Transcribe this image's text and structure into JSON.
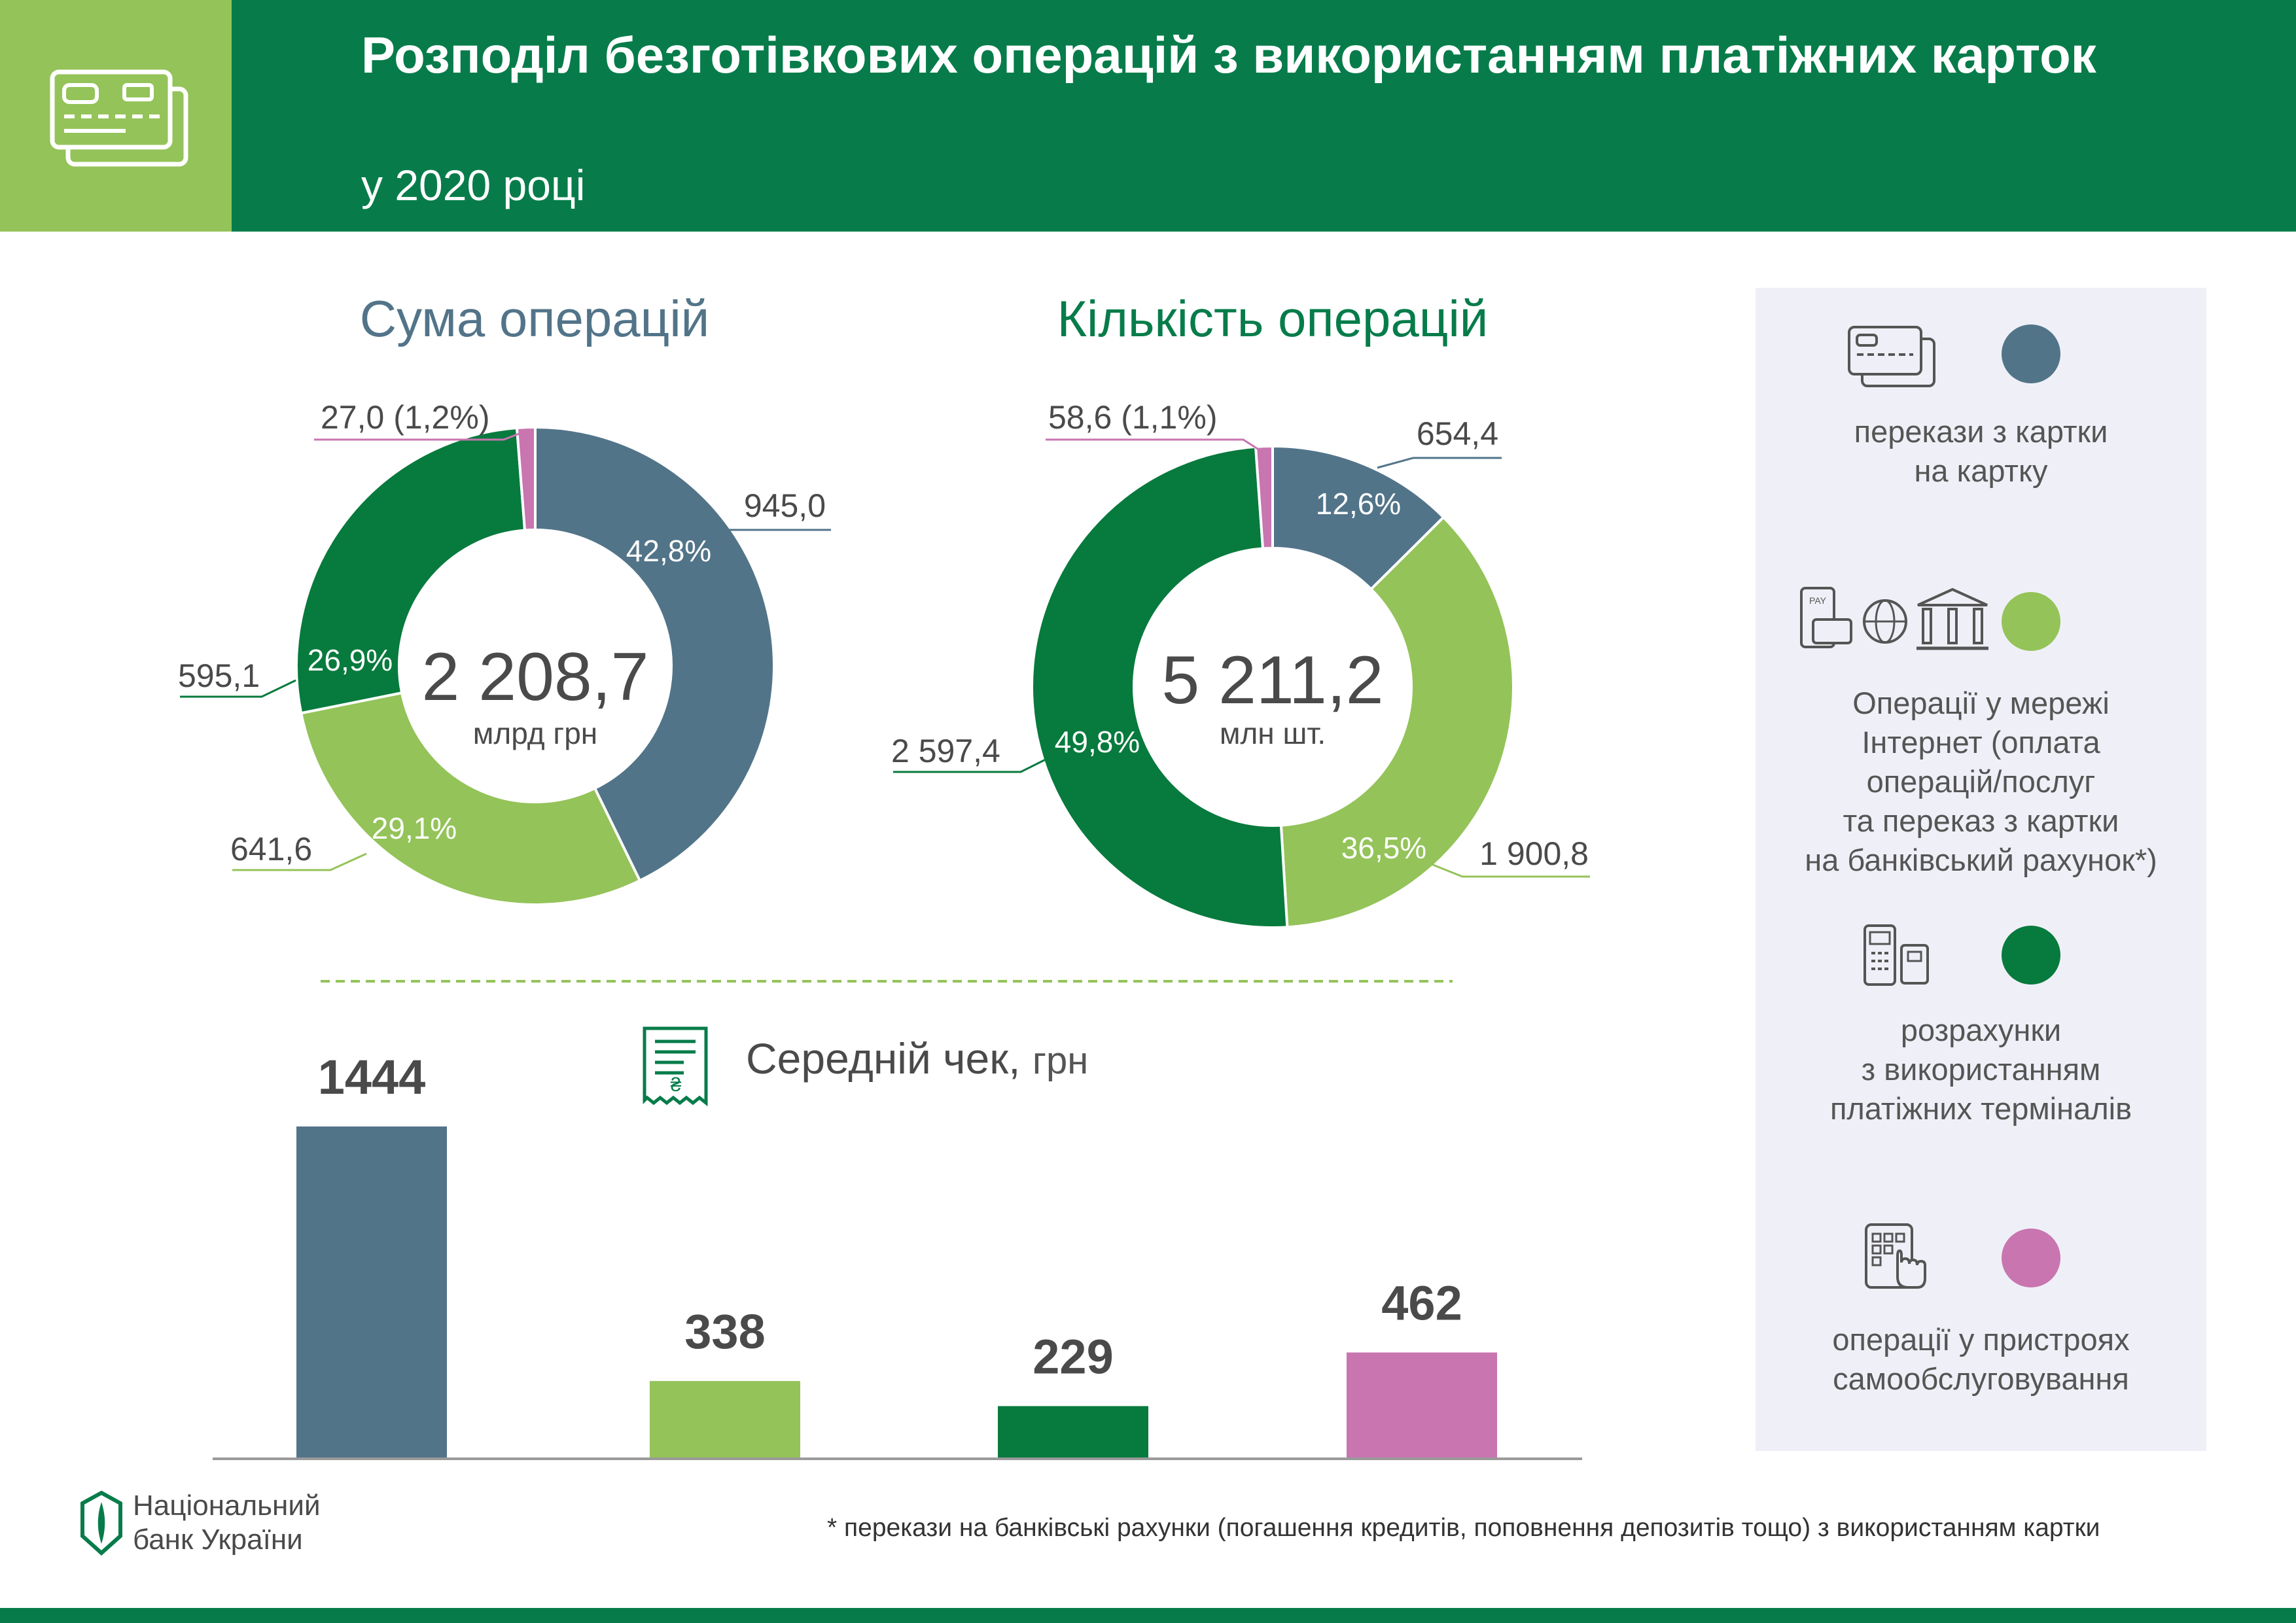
{
  "header": {
    "title": "Розподіл безготівкових операцій з використанням платіжних карток",
    "subtitle": "у 2020 році"
  },
  "donut_sum": {
    "title": "Сума операцій",
    "total": "2 208,7",
    "unit": "млрд грн"
  },
  "donut_count": {
    "title": "Кількість операцій",
    "total": "5 211,2",
    "unit": "млн шт."
  },
  "avg_check": {
    "title": "Середній чек,",
    "unit": "грн"
  },
  "legend": [
    {
      "label": "перекази з картки\nна картку",
      "color": "#527489",
      "icon": "credit-card-icon"
    },
    {
      "label": "Операції у мережі\nІнтернет (оплата\nоперацій/послуг\nта переказ з картки\nна банківський рахунок*)",
      "color": "#94c359",
      "icon": "internet-payment-icon"
    },
    {
      "label": "розрахунки\nз використанням\nплатіжних терміналів",
      "color": "#077a3d",
      "icon": "pos-terminal-icon"
    },
    {
      "label": "операції у пристроях\nсамообслуговування",
      "color": "#c875b0",
      "icon": "self-service-kiosk-icon"
    }
  ],
  "footer": {
    "logo_line1": "Національний",
    "logo_line2": "банк України",
    "note": "* перекази на банківські рахунки (погашення кредитів, поповнення депозитів тощо) з використанням картки"
  },
  "chart_data": [
    {
      "type": "pie",
      "title": "Сума операцій",
      "categories": [
        "перекази з картки на картку",
        "Операції у мережі Інтернет",
        "розрахунки з використанням платіжних терміналів",
        "операції у пристроях самообслуговування"
      ],
      "values": [
        945.0,
        641.6,
        595.1,
        27.0
      ],
      "value_labels": [
        "945,0",
        "641,6",
        "595,1",
        "27,0 (1,2%)"
      ],
      "percent_labels": [
        "42,8%",
        "29,1%",
        "26,9%",
        ""
      ],
      "colors": [
        "#527489",
        "#94c359",
        "#077a3d",
        "#c875b0"
      ]
    },
    {
      "type": "pie",
      "title": "Кількість операцій",
      "categories": [
        "перекази з картки на картку",
        "Операції у мережі Інтернет",
        "розрахунки з використанням платіжних терміналів",
        "операції у пристроях самообслуговування"
      ],
      "values": [
        654.4,
        1900.8,
        2597.4,
        58.6
      ],
      "value_labels": [
        "654,4",
        "1 900,8",
        "2 597,4",
        "58,6 (1,1%)"
      ],
      "percent_labels": [
        "12,6%",
        "36,5%",
        "49,8%",
        ""
      ],
      "colors": [
        "#527489",
        "#94c359",
        "#077a3d",
        "#c875b0"
      ]
    },
    {
      "type": "bar",
      "title": "Середній чек, грн",
      "categories": [
        "перекази з картки на картку",
        "Операції у мережі Інтернет",
        "розрахунки з використанням платіжних терміналів",
        "операції у пристроях самообслуговування"
      ],
      "values": [
        1444,
        338,
        229,
        462
      ],
      "colors": [
        "#527489",
        "#94c359",
        "#077a3d",
        "#c875b0"
      ]
    }
  ]
}
